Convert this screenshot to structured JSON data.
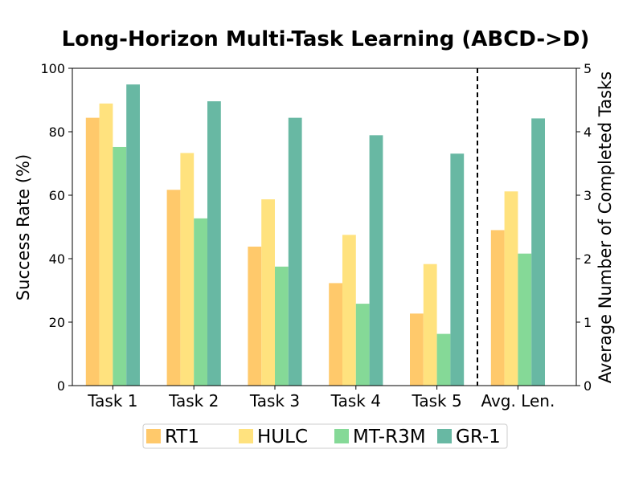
{
  "chart_data": {
    "type": "bar",
    "title": "Long-Horizon Multi-Task Learning (ABCD->D)",
    "ylabel": "Success Rate (%)",
    "y2label": "Average Number of Completed Tasks",
    "ylim": [
      0,
      100
    ],
    "y2lim": [
      0,
      5
    ],
    "yticks": [
      "0",
      "20",
      "40",
      "60",
      "80",
      "100"
    ],
    "y2ticks": [
      "0",
      "1",
      "2",
      "3",
      "4",
      "5"
    ],
    "categories": [
      "Task 1",
      "Task 2",
      "Task 3",
      "Task 4",
      "Task 5"
    ],
    "secondary_category": "Avg. Len.",
    "series": [
      {
        "name": "RT1",
        "color": "#FFC96B",
        "values": [
          84.4,
          61.7,
          43.8,
          32.3,
          22.7
        ],
        "avg_len": 2.45
      },
      {
        "name": "HULC",
        "color": "#FFE27E",
        "values": [
          88.9,
          73.3,
          58.7,
          47.5,
          38.3
        ],
        "avg_len": 3.06
      },
      {
        "name": "MT-R3M",
        "color": "#85D997",
        "values": [
          75.2,
          52.7,
          37.5,
          25.8,
          16.3
        ],
        "avg_len": 2.08
      },
      {
        "name": "GR-1",
        "color": "#68B8A3",
        "values": [
          94.9,
          89.6,
          84.4,
          78.9,
          73.1
        ],
        "avg_len": 4.21
      }
    ],
    "grid": false,
    "legend_position": "bottom"
  }
}
